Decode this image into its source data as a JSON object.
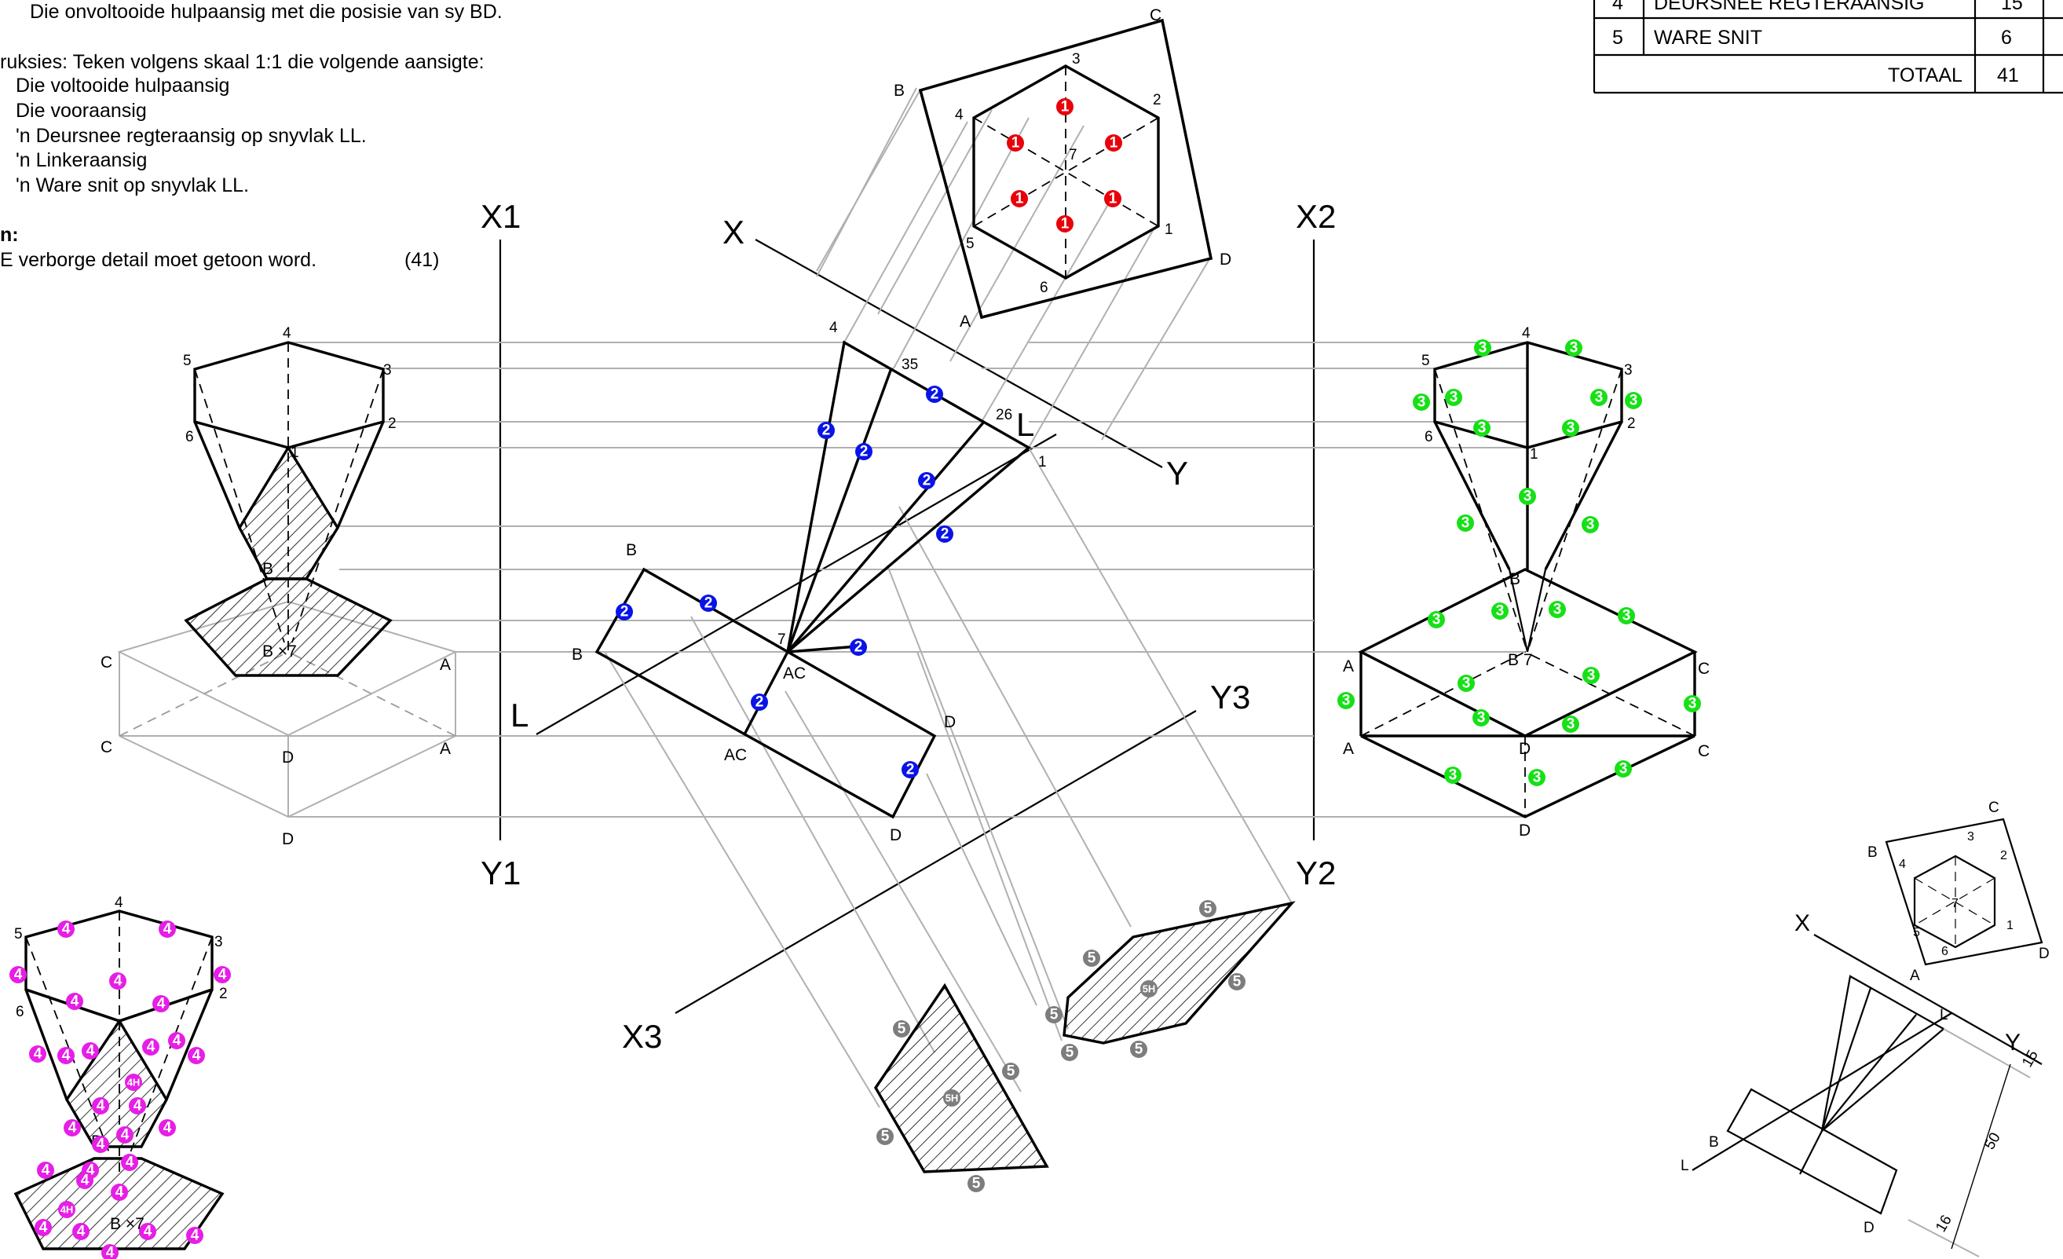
{
  "instructions": {
    "lines": [
      "Die onvoltooide hulpaansig met die posisie van sy BD.",
      "ruksies: Teken volgens skaal 1:1 die volgende aansigte:",
      "Die voltooide hulpaansig",
      "Die vooraansig",
      "'n Deursnee regteraansig op snyvlak LL.",
      "'n Linkeraansig",
      "'n Ware snit op snyvlak LL.",
      "n:",
      "E verborge detail moet getoon word."
    ],
    "total_marks": "(41)"
  },
  "mark_table": {
    "rows": [
      {
        "no": "4",
        "item": "DEURSNEE REGTERAANSIG",
        "marks": "15"
      },
      {
        "no": "5",
        "item": "WARE SNIT",
        "marks": "6"
      }
    ],
    "total_label": "TOTAAL",
    "total_value": "41"
  },
  "planes": {
    "x1": "X1",
    "y1": "Y1",
    "x2": "X2",
    "y2": "Y2",
    "x3": "X3",
    "y3": "Y3",
    "x": "X",
    "y": "Y",
    "l": "L"
  },
  "point_labels": {
    "n1": "1",
    "n2": "2",
    "n3": "3",
    "n4": "4",
    "n5": "5",
    "n6": "6",
    "n7": "7",
    "n26": "26",
    "n35": "35",
    "a": "A",
    "b": "B",
    "c": "C",
    "d": "D",
    "ac": "AC",
    "b7": "B 7",
    "b_7": "B ×7",
    "l": "L"
  },
  "mark_labels": {
    "aux": "1",
    "front": "2",
    "section": "3",
    "left": "4",
    "left_hidden": "4H",
    "true_cut": "5",
    "true_cut_hidden": "5H"
  },
  "mark_colors": {
    "aux": "#e8000b",
    "front": "#0a14e6",
    "section": "#16e016",
    "left": "#e61ee6",
    "true_cut": "#7d7d7d"
  },
  "dimensions": {
    "d15": "15",
    "d50": "50",
    "d16": "16"
  }
}
